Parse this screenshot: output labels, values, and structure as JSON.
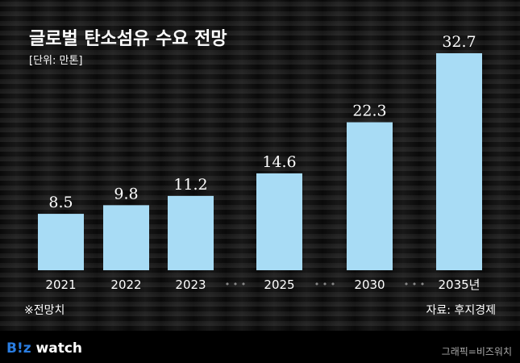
{
  "chart_data": {
    "type": "bar",
    "title": "글로벌 탄소섬유 수요 전망",
    "subtitle": "[단위: 만톤]",
    "categories": [
      "2021",
      "2022",
      "2023",
      "2025",
      "2030",
      "2035년"
    ],
    "values": [
      8.5,
      9.8,
      11.2,
      14.6,
      22.3,
      32.7
    ],
    "data_labels": [
      "8.5",
      "9.8",
      "11.2",
      "14.6",
      "22.3",
      "32.7"
    ],
    "ylim": [
      0,
      32.7
    ],
    "grid": false,
    "bar_color": "#a8dcf5",
    "gap_markers": "• • •"
  },
  "note": "※전망치",
  "source": "자료: 후지경제",
  "logo": {
    "b": "B!z",
    "rest": " watch"
  },
  "credit": "그래픽=비즈워치"
}
